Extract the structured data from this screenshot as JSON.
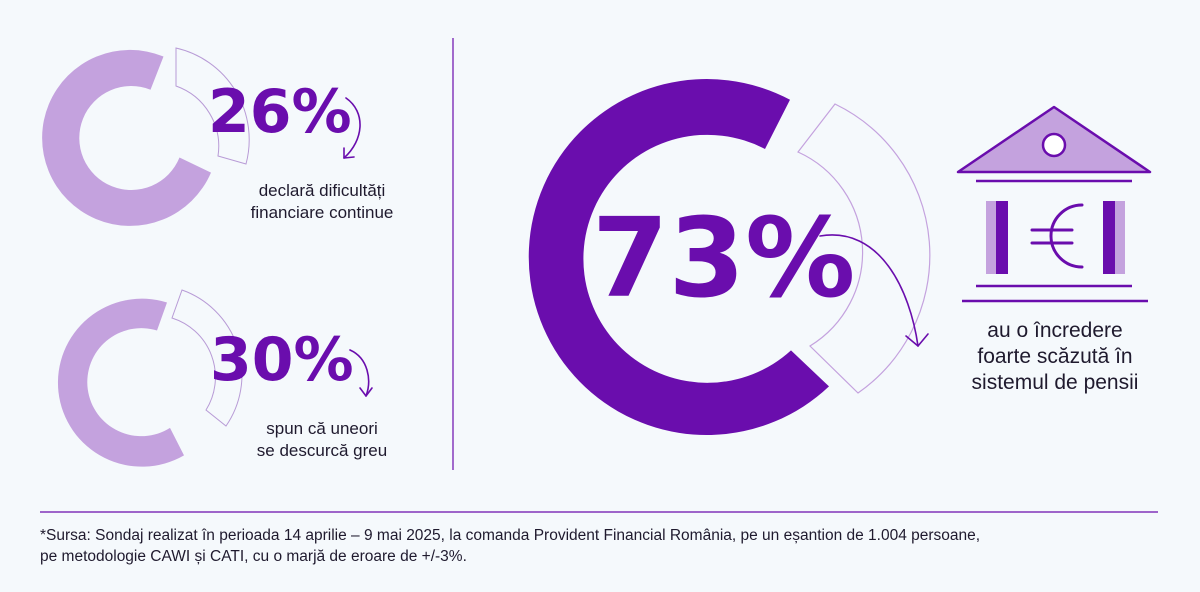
{
  "stats": [
    {
      "value": "26%",
      "percent": 26,
      "caption": [
        "declară dificultăți",
        "financiare continue"
      ]
    },
    {
      "value": "30%",
      "percent": 30,
      "caption": [
        "spun că uneori",
        "se descurcă greu"
      ]
    },
    {
      "value": "73%",
      "percent": 73,
      "caption": [
        "au o încredere",
        "foarte scăzută în",
        "sistemul de pensii"
      ]
    }
  ],
  "icons": {
    "bank": "bank-euro-icon",
    "arrow": "curved-arrow-icon"
  },
  "footnote": [
    "*Sursa: Sondaj realizat în perioada 14 aprilie – 9 mai 2025, la comanda Provident Financial România, pe un eșantion de 1.004 persoane,",
    "pe metodologie CAWI și CATI, cu o marjă de eroare de +/-3%."
  ],
  "colors": {
    "primary": "#6a0dad",
    "light": "#c4a2de",
    "outline": "#b89bd6",
    "background": "#f5f9fc",
    "text": "#1f1a2e"
  }
}
